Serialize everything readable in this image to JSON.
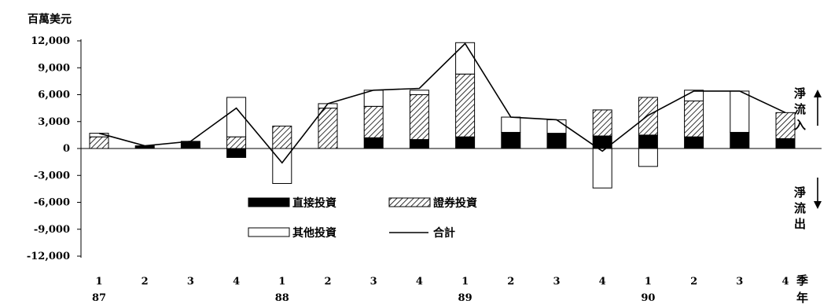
{
  "chart_data": {
    "type": "bar",
    "stacked": true,
    "unit_label": "百萬美元",
    "x_axis_unit_label": "季年",
    "categories": [
      "1",
      "2",
      "3",
      "4",
      "1",
      "2",
      "3",
      "4",
      "1",
      "2",
      "3",
      "4",
      "1",
      "2",
      "3",
      "4"
    ],
    "year_labels": [
      {
        "label": "87",
        "index": 0
      },
      {
        "label": "88",
        "index": 4
      },
      {
        "label": "89",
        "index": 8
      },
      {
        "label": "90",
        "index": 12
      }
    ],
    "ylim": [
      -12000,
      12000
    ],
    "yticks": [
      12000,
      9000,
      6000,
      3000,
      0,
      -3000,
      -6000,
      -9000,
      -12000
    ],
    "ytick_labels": [
      "12,000",
      "9,000",
      "6,000",
      "3,000",
      "0",
      "-3,000",
      "-6,000",
      "-9,000",
      "-12,000"
    ],
    "series": [
      {
        "name": "直接投資",
        "kind": "bar",
        "pattern": "solid",
        "values": [
          0,
          300,
          800,
          -1000,
          0,
          0,
          1200,
          1000,
          1300,
          1800,
          1700,
          1400,
          1500,
          1300,
          1800,
          1100
        ]
      },
      {
        "name": "證券投資",
        "kind": "bar",
        "pattern": "hatch",
        "values": [
          1300,
          0,
          0,
          1300,
          2500,
          4500,
          3500,
          5000,
          7000,
          0,
          0,
          2900,
          4200,
          4000,
          0,
          2900
        ]
      },
      {
        "name": "其他投資",
        "kind": "bar",
        "pattern": "hollow",
        "values": [
          400,
          0,
          0,
          4400,
          -3900,
          500,
          1800,
          500,
          3500,
          1700,
          1500,
          -4400,
          -2000,
          1200,
          4600,
          0
        ]
      },
      {
        "name": "合計",
        "kind": "line",
        "values": [
          1700,
          300,
          800,
          4500,
          -1600,
          5000,
          6500,
          6700,
          11700,
          3500,
          3200,
          -300,
          3700,
          6400,
          6400,
          4000
        ]
      }
    ],
    "side_labels": {
      "inflow": [
        "淨",
        "流",
        "入"
      ],
      "outflow": [
        "淨",
        "流",
        "出"
      ]
    },
    "colors": {
      "solid": "#000000",
      "hatch": "#000000",
      "hollow": "#ffffff",
      "line": "#000000"
    }
  }
}
